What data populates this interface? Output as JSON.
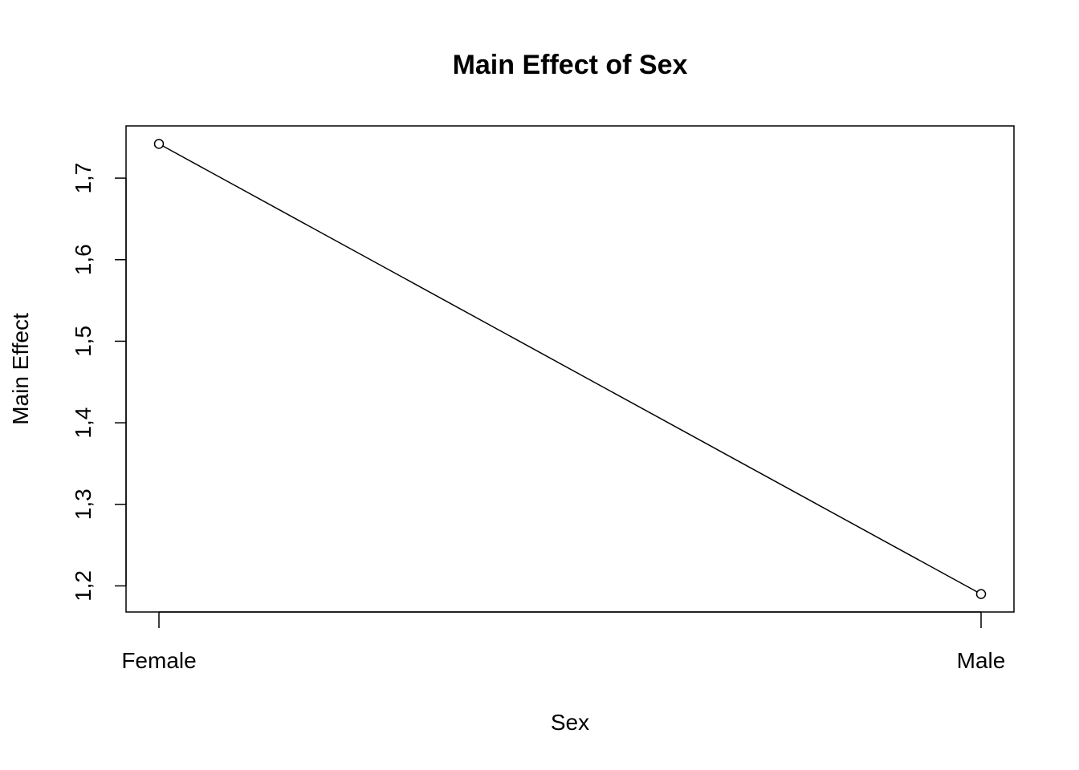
{
  "chart_data": {
    "type": "line",
    "title": "Main Effect of Sex",
    "xlabel": "Sex",
    "ylabel": "Main Effect",
    "categories": [
      "Female",
      "Male"
    ],
    "values": [
      1.742,
      1.19
    ],
    "y_ticks": [
      1.2,
      1.3,
      1.4,
      1.5,
      1.6,
      1.7
    ],
    "y_tick_labels": [
      "1,2",
      "1,3",
      "1,4",
      "1,5",
      "1,6",
      "1,7"
    ],
    "ylim": [
      1.168,
      1.764
    ],
    "marker": "open-circle",
    "grid": false,
    "legend": "none",
    "line_color": "#000000"
  }
}
